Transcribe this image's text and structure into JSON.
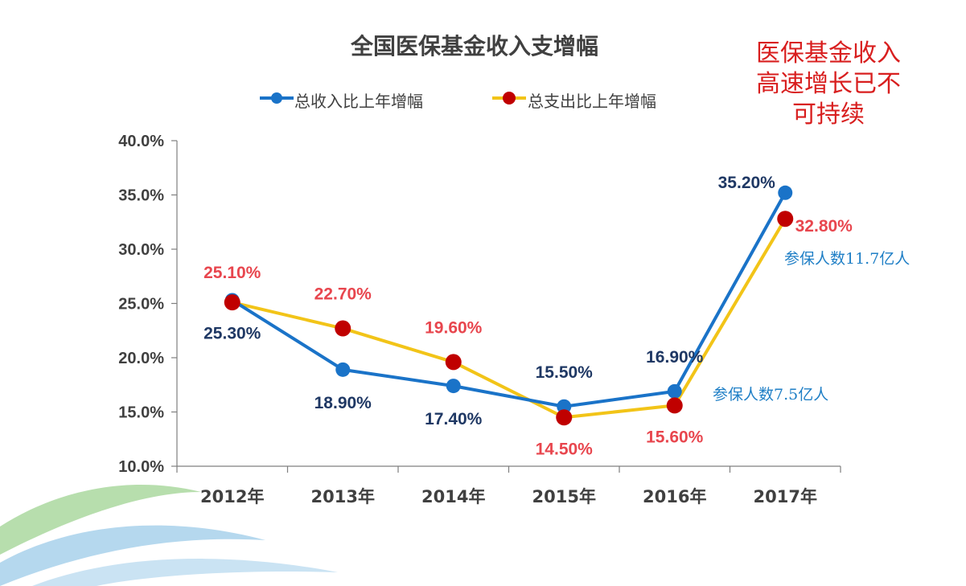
{
  "colors": {
    "income_line": "#1a73c8",
    "income_marker": "#1a73c8",
    "expense_line": "#f2c418",
    "expense_marker": "#c00000",
    "income_label": "#1f3864",
    "expense_label": "#e8464e",
    "annotation": "#d81e1e",
    "note": "#1f7fc6",
    "axis_text": "#404040",
    "wave_green": "#7cc26a",
    "wave_blue": "#2c8fcf"
  },
  "chart_data": {
    "type": "line",
    "title": "全国医保基金收入支增幅",
    "categories": [
      "2012年",
      "2013年",
      "2014年",
      "2015年",
      "2016年",
      "2017年"
    ],
    "ylim": [
      10.0,
      40.0
    ],
    "yticks": [
      "10.0%",
      "15.0%",
      "20.0%",
      "25.0%",
      "30.0%",
      "35.0%",
      "40.0%"
    ],
    "xlabel": "",
    "ylabel": "",
    "grid": false,
    "legend_position": "top",
    "series": [
      {
        "name": "总收入比上年增幅",
        "values": [
          25.3,
          18.9,
          17.4,
          15.5,
          16.9,
          35.2
        ],
        "labels": [
          "25.30%",
          "18.90%",
          "17.40%",
          "15.50%",
          "16.90%",
          "35.20%"
        ]
      },
      {
        "name": "总支出比上年增幅",
        "values": [
          25.1,
          22.7,
          19.6,
          14.5,
          15.6,
          32.8
        ],
        "labels": [
          "25.10%",
          "22.70%",
          "19.60%",
          "14.50%",
          "15.60%",
          "32.80%"
        ]
      }
    ]
  },
  "annotation": {
    "lines": [
      "医保基金收入",
      "高速增长已不",
      "可持续"
    ]
  },
  "notes": {
    "insured_2016": "参保人数7.5亿人",
    "insured_2017": "参保人数11.7亿人"
  }
}
